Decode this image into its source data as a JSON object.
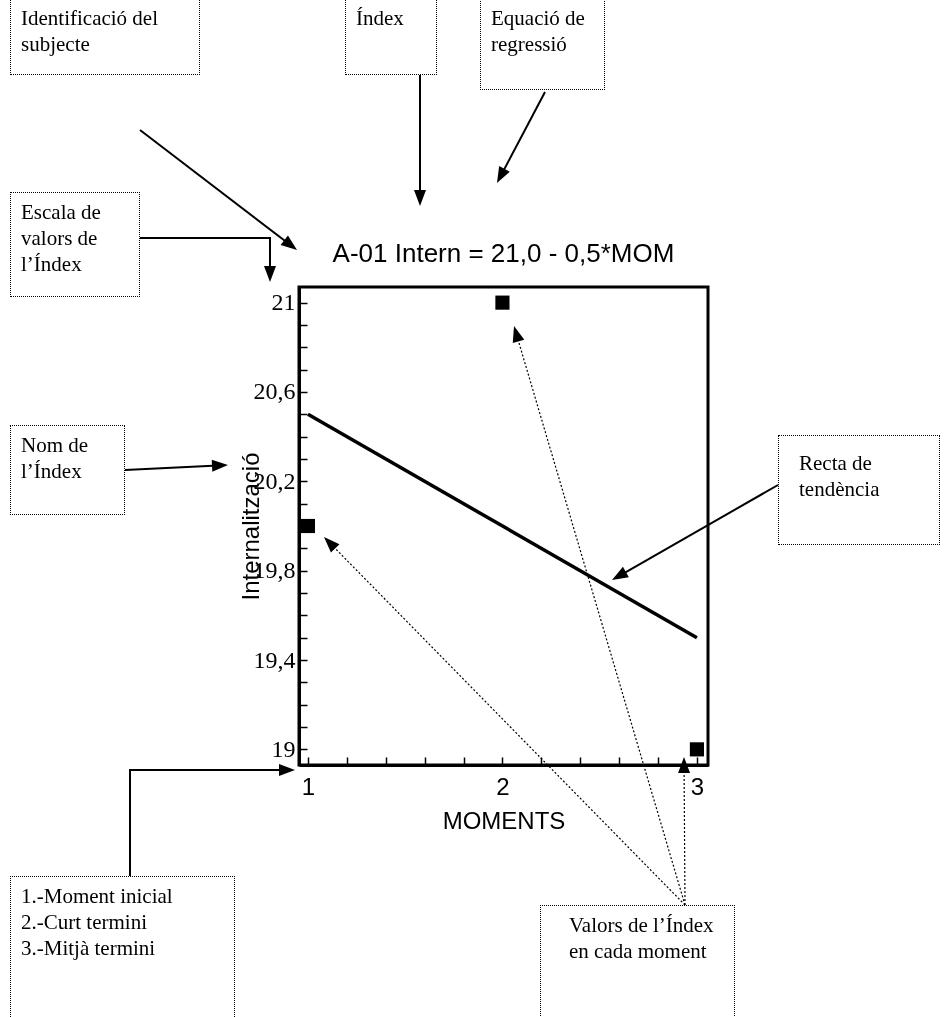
{
  "chart_data": {
    "type": "scatter",
    "title": "A-01 Intern = 21,0 - 0,5*MOM",
    "xlabel": "MOMENTS",
    "ylabel": "Internalització",
    "xlim": [
      0.954,
      3.057
    ],
    "xticks": [
      1,
      {
        "value": 1.2,
        "label": null
      },
      {
        "value": 1.4,
        "label": null
      },
      {
        "value": 1.6,
        "label": null
      },
      {
        "value": 1.8,
        "label": null
      },
      2,
      {
        "value": 2.2,
        "label": null
      },
      {
        "value": 2.4,
        "label": null
      },
      {
        "value": 2.6,
        "label": null
      },
      {
        "value": 2.8,
        "label": null
      },
      3
    ],
    "ylim": [
      18.93,
      21.07
    ],
    "yticks": [
      {
        "value": 19,
        "label": "19"
      },
      {
        "value": 19.1,
        "label": null
      },
      {
        "value": 19.2,
        "label": null
      },
      {
        "value": 19.3,
        "label": null
      },
      {
        "value": 19.4,
        "label": "19,4"
      },
      {
        "value": 19.5,
        "label": null
      },
      {
        "value": 19.6,
        "label": null
      },
      {
        "value": 19.7,
        "label": null
      },
      {
        "value": 19.8,
        "label": "19,8"
      },
      {
        "value": 19.9,
        "label": null
      },
      {
        "value": 20,
        "label": null
      },
      {
        "value": 20.1,
        "label": null
      },
      {
        "value": 20.2,
        "label": "20,2"
      },
      {
        "value": 20.3,
        "label": null
      },
      {
        "value": 20.4,
        "label": null
      },
      {
        "value": 20.5,
        "label": null
      },
      {
        "value": 20.6,
        "label": "20,6"
      },
      {
        "value": 20.7,
        "label": null
      },
      {
        "value": 20.8,
        "label": null
      },
      {
        "value": 20.9,
        "label": null
      },
      {
        "value": 21,
        "label": "21"
      }
    ],
    "marker": "square",
    "series": [
      {
        "color": "#000000",
        "x": [
          1,
          2,
          3
        ],
        "values": [
          20.0,
          21.0,
          19.0
        ]
      },
      {
        "type": "line",
        "color": "#000000",
        "marker": "none",
        "x": [
          1,
          3
        ],
        "values": [
          20.5,
          19.5
        ]
      }
    ],
    "annotations": [
      "Identificació del subjecte",
      "Índex",
      "Equació de regressió",
      "Escala de valors de l’Índex",
      "Nom de l’Índex",
      "Recta de tendència",
      "1.-Moment inicial\n2.-Curt termini\n3.-Mitjà termini",
      "Valors de l’Índex en cada moment"
    ]
  }
}
